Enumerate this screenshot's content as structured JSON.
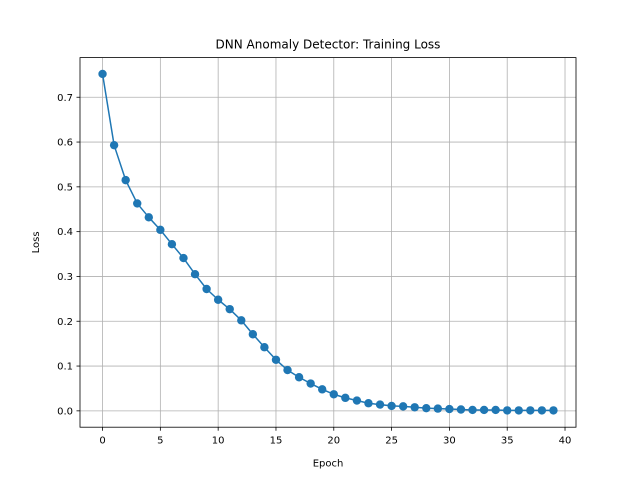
{
  "chart_data": {
    "type": "line",
    "title": "DNN Anomaly Detector: Training Loss",
    "xlabel": "Epoch",
    "ylabel": "Loss",
    "xlim": [
      -1.95,
      40.95
    ],
    "ylim": [
      -0.0365,
      0.7885
    ],
    "xticks": [
      0,
      5,
      10,
      15,
      20,
      25,
      30,
      35,
      40
    ],
    "yticks": [
      0.0,
      0.1,
      0.2,
      0.3,
      0.4,
      0.5,
      0.6,
      0.7
    ],
    "xtick_labels": [
      "0",
      "5",
      "10",
      "15",
      "20",
      "25",
      "30",
      "35",
      "40"
    ],
    "ytick_labels": [
      "0.0",
      "0.1",
      "0.2",
      "0.3",
      "0.4",
      "0.5",
      "0.6",
      "0.7"
    ],
    "grid": true,
    "marker": "circle",
    "color": "#1f77b4",
    "series": [
      {
        "x": [
          0,
          1,
          2,
          3,
          4,
          5,
          6,
          7,
          8,
          9,
          10,
          11,
          12,
          13,
          14,
          15,
          16,
          17,
          18,
          19,
          20,
          21,
          22,
          23,
          24,
          25,
          26,
          27,
          28,
          29,
          30,
          31,
          32,
          33,
          34,
          35,
          36,
          37,
          38,
          39
        ],
        "values": [
          0.752,
          0.593,
          0.515,
          0.463,
          0.432,
          0.404,
          0.372,
          0.341,
          0.305,
          0.272,
          0.248,
          0.227,
          0.202,
          0.171,
          0.142,
          0.114,
          0.091,
          0.075,
          0.061,
          0.048,
          0.037,
          0.029,
          0.023,
          0.017,
          0.014,
          0.011,
          0.01,
          0.008,
          0.006,
          0.005,
          0.004,
          0.003,
          0.002,
          0.002,
          0.002,
          0.001,
          0.001,
          0.001,
          0.001,
          0.001
        ]
      }
    ]
  }
}
